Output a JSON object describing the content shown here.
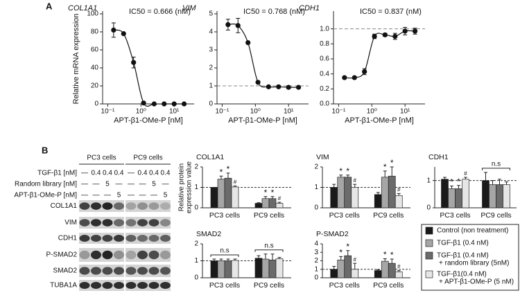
{
  "panels": {
    "a": "A",
    "b": "B"
  },
  "chart_data": [
    {
      "type": "dose_response",
      "title": "COL1A1",
      "annotation": "IC50 = 0.666 (nM)",
      "ylabel": "Relative mRNA expression",
      "xlabel": "APT-β1-OMe-P [nM]",
      "xscale": "log",
      "x": [
        0.15,
        0.3,
        0.6,
        1.2,
        2.5,
        5,
        10,
        20
      ],
      "values": [
        82,
        78,
        46,
        1,
        0,
        0,
        0,
        0
      ],
      "errors": [
        8,
        0,
        6,
        0,
        0,
        0,
        0,
        0
      ],
      "color": "#111111",
      "xlim": [
        0.07,
        40
      ],
      "xticks": [
        {
          "value": 0.1,
          "label": "10⁻¹"
        },
        {
          "value": 1,
          "label": "10⁰"
        },
        {
          "value": 10,
          "label": "10¹"
        }
      ],
      "ylim": [
        0,
        100
      ],
      "yticks": [
        0,
        20,
        40,
        60,
        80,
        100
      ]
    },
    {
      "type": "dose_response",
      "title": "VIM",
      "annotation": "IC50 = 0.768 (nM)",
      "xlabel": "APT-β1-OMe-P [nM]",
      "xscale": "log",
      "x": [
        0.15,
        0.3,
        0.6,
        1.2,
        2.5,
        5,
        10,
        20
      ],
      "values": [
        4.4,
        4.35,
        3.4,
        1.2,
        0.95,
        0.95,
        0.92,
        0.92
      ],
      "errors": [
        0.3,
        0.4,
        0,
        0,
        0,
        0,
        0,
        0
      ],
      "color": "#111111",
      "xlim": [
        0.07,
        40
      ],
      "xticks": [
        {
          "value": 0.1,
          "label": "10⁻¹"
        },
        {
          "value": 1,
          "label": "10⁰"
        },
        {
          "value": 10,
          "label": "10¹"
        }
      ],
      "ylim": [
        0,
        5
      ],
      "yticks": [
        0,
        1,
        2,
        3,
        4,
        5
      ],
      "refline": 1
    },
    {
      "type": "dose_response",
      "title": "CDH1",
      "annotation": "IC50 = 0.837 (nM)",
      "xlabel": "APT-β1-OMe-P [nM]",
      "xscale": "log",
      "x": [
        0.15,
        0.3,
        0.6,
        1.2,
        2.5,
        5,
        10,
        20
      ],
      "values": [
        0.35,
        0.35,
        0.43,
        0.9,
        0.92,
        0.9,
        0.97,
        0.97
      ],
      "errors": [
        0,
        0,
        0.04,
        0.03,
        0.02,
        0.04,
        0.05,
        0.04
      ],
      "color": "#111111",
      "xlim": [
        0.07,
        40
      ],
      "xticks": [
        {
          "value": 0.1,
          "label": "10⁻¹"
        },
        {
          "value": 1,
          "label": "10⁰"
        },
        {
          "value": 10,
          "label": "10¹"
        }
      ],
      "ylim": [
        0,
        1.2
      ],
      "yticks": [
        {
          "value": 0,
          "label": "0.0"
        },
        0.2,
        0.4,
        0.6,
        0.8,
        {
          "value": 1,
          "label": "1.0"
        }
      ],
      "refline": 1
    },
    {
      "type": "grouped_bar",
      "title": "COL1A1",
      "ylabel": [
        "Relative protein",
        "expression value"
      ],
      "categories": [
        "PC3 cells",
        "PC9 cells"
      ],
      "series": [
        {
          "color": "#1a1a1a",
          "values": [
            1,
            0.22
          ],
          "errors": [
            0,
            0.03
          ],
          "marks": [
            null,
            null
          ]
        },
        {
          "color": "#a6a6a6",
          "values": [
            1.4,
            0.45
          ],
          "errors": [
            0.15,
            0.1
          ],
          "marks": [
            "*",
            "*"
          ]
        },
        {
          "color": "#6b6b6b",
          "values": [
            1.45,
            0.45
          ],
          "errors": [
            0.25,
            0.1
          ],
          "marks": [
            "*",
            "*"
          ]
        },
        {
          "color": "#e6e6e6",
          "values": [
            1.02,
            0.22
          ],
          "errors": [
            0.05,
            0.05
          ],
          "marks": [
            "#",
            "#"
          ]
        }
      ],
      "ylim": [
        0,
        2
      ],
      "yticks": [
        0,
        1,
        2
      ],
      "refline": 1,
      "group_labels": [
        null,
        null
      ]
    },
    {
      "type": "grouped_bar",
      "title": "VIM",
      "categories": [
        "PC3 cells",
        "PC9 cells"
      ],
      "series": [
        {
          "color": "#1a1a1a",
          "values": [
            1,
            0.65
          ],
          "errors": [
            0.15,
            0.1
          ],
          "marks": [
            null,
            null
          ]
        },
        {
          "color": "#a6a6a6",
          "values": [
            1.5,
            1.5
          ],
          "errors": [
            0.1,
            0.3
          ],
          "marks": [
            "*",
            "*"
          ]
        },
        {
          "color": "#6b6b6b",
          "values": [
            1.5,
            1.55
          ],
          "errors": [
            0.1,
            0.45
          ],
          "marks": [
            "*",
            "*"
          ]
        },
        {
          "color": "#e6e6e6",
          "values": [
            1,
            0.6
          ],
          "errors": [
            0.15,
            0.1
          ],
          "marks": [
            "#",
            "#"
          ]
        }
      ],
      "ylim": [
        0,
        2
      ],
      "yticks": [
        0,
        1,
        2
      ],
      "refline": 1,
      "group_labels": [
        null,
        null
      ]
    },
    {
      "type": "grouped_bar",
      "title": "CDH1",
      "categories": [
        "PC3 cells",
        "PC9 cells"
      ],
      "series": [
        {
          "color": "#1a1a1a",
          "values": [
            1.05,
            1
          ],
          "errors": [
            0.07,
            0.3
          ],
          "marks": [
            null,
            null
          ]
        },
        {
          "color": "#a6a6a6",
          "values": [
            0.7,
            0.85
          ],
          "errors": [
            0.1,
            0.15
          ],
          "marks": [
            "*",
            null
          ]
        },
        {
          "color": "#6b6b6b",
          "values": [
            0.7,
            0.85
          ],
          "errors": [
            0.12,
            0.2
          ],
          "marks": [
            "*",
            null
          ]
        },
        {
          "color": "#e6e6e6",
          "values": [
            1.05,
            0.85
          ],
          "errors": [
            0.07,
            0.1
          ],
          "marks": [
            "#",
            null
          ]
        }
      ],
      "ylim": [
        0,
        1.5
      ],
      "yticks": [
        0,
        1
      ],
      "refline": 1,
      "group_labels": [
        null,
        "n.s"
      ]
    },
    {
      "type": "grouped_bar",
      "title": "SMAD2",
      "categories": [
        "PC3 cells",
        "PC9 cells"
      ],
      "series": [
        {
          "color": "#1a1a1a",
          "values": [
            1,
            1.15
          ],
          "errors": [
            0.1,
            0.15
          ],
          "marks": [
            null,
            null
          ]
        },
        {
          "color": "#a6a6a6",
          "values": [
            1,
            1.1
          ],
          "errors": [
            0.1,
            0.3
          ],
          "marks": [
            null,
            null
          ]
        },
        {
          "color": "#6b6b6b",
          "values": [
            1,
            1.05
          ],
          "errors": [
            0.1,
            0.35
          ],
          "marks": [
            null,
            null
          ]
        },
        {
          "color": "#e6e6e6",
          "values": [
            1.02,
            1.12
          ],
          "errors": [
            0.08,
            0.08
          ],
          "marks": [
            null,
            null
          ]
        }
      ],
      "ylim": [
        0,
        2
      ],
      "yticks": [
        0,
        1,
        2
      ],
      "refline": 1,
      "group_labels": [
        "n.s",
        "n.s"
      ]
    },
    {
      "type": "grouped_bar",
      "title": "P-SMAD2",
      "categories": [
        "PC3 cells",
        "PC9 cells"
      ],
      "series": [
        {
          "color": "#1a1a1a",
          "values": [
            1,
            0.85
          ],
          "errors": [
            0.35,
            0.1
          ],
          "marks": [
            null,
            null
          ]
        },
        {
          "color": "#a6a6a6",
          "values": [
            2.1,
            1.95
          ],
          "errors": [
            0.4,
            0.3
          ],
          "marks": [
            "*",
            "*"
          ]
        },
        {
          "color": "#6b6b6b",
          "values": [
            2.6,
            1.7
          ],
          "errors": [
            0.6,
            0.5
          ],
          "marks": [
            "*",
            "*"
          ]
        },
        {
          "color": "#e6e6e6",
          "values": [
            1,
            0.7
          ],
          "errors": [
            0.7,
            0.15
          ],
          "marks": [
            "#",
            "#"
          ]
        }
      ],
      "ylim": [
        0,
        4
      ],
      "yticks": [
        0,
        1,
        2,
        3,
        4
      ],
      "refline": 1,
      "group_labels": [
        null,
        null
      ]
    }
  ],
  "blot": {
    "cell_lines": [
      "PC3 cells",
      "PC9 cells"
    ],
    "conditions": [
      {
        "label": "TGF-β1 [nM]",
        "lanes": [
          "—",
          "0.4",
          "0.4",
          "0.4",
          "—",
          "0.4",
          "0.4",
          "0.4"
        ]
      },
      {
        "label": "Random library [nM]",
        "lanes": [
          "—",
          "—",
          "5",
          "—",
          "—",
          "—",
          "5",
          "—"
        ]
      },
      {
        "label": "APT-β1-OMe-P [nM]",
        "lanes": [
          "—",
          "—",
          "—",
          "5",
          "—",
          "—",
          "—",
          "5"
        ]
      }
    ],
    "proteins": [
      "COL1A1",
      "VIM",
      "CDH1",
      "P-SMAD2",
      "SMAD2",
      "TUBA1A"
    ]
  },
  "legend": {
    "entries": [
      {
        "color": "#1a1a1a",
        "lines": [
          "Control (non treatment)"
        ]
      },
      {
        "color": "#a6a6a6",
        "lines": [
          "TGF-β1 (0.4 nM)"
        ]
      },
      {
        "color": "#6b6b6b",
        "lines": [
          "TGF-β1 (0.4 nM)",
          "+ random library (5nM)"
        ]
      },
      {
        "color": "#e6e6e6",
        "lines": [
          "TGF-β1(0.4 nM)",
          "+ APT-β1-OMe-P (5 nM)"
        ]
      }
    ]
  }
}
